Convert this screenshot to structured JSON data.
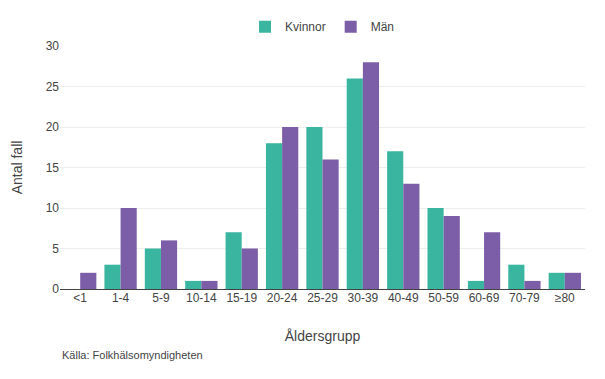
{
  "chart_data": {
    "type": "bar",
    "categories": [
      "<1",
      "1-4",
      "5-9",
      "10-14",
      "15-19",
      "20-24",
      "25-29",
      "30-39",
      "40-49",
      "50-59",
      "60-69",
      "70-79",
      "≥80"
    ],
    "series": [
      {
        "name": "Kvinnor",
        "color": "#3ab5a0",
        "values": [
          0,
          3,
          5,
          1,
          7,
          18,
          20,
          26,
          17,
          10,
          1,
          3,
          2
        ]
      },
      {
        "name": "Män",
        "color": "#7b5ea7",
        "values": [
          2,
          10,
          6,
          1,
          5,
          20,
          16,
          28,
          13,
          9,
          7,
          1,
          2
        ]
      }
    ],
    "xlabel": "Åldersgrupp",
    "ylabel": "Antal fall",
    "annotations": [
      "Källa: Folkhälsomyndigheten"
    ],
    "ylim": [
      0,
      30
    ],
    "yticks": [
      0,
      5,
      10,
      15,
      20,
      25,
      30
    ],
    "grid": true,
    "legend": "top"
  }
}
